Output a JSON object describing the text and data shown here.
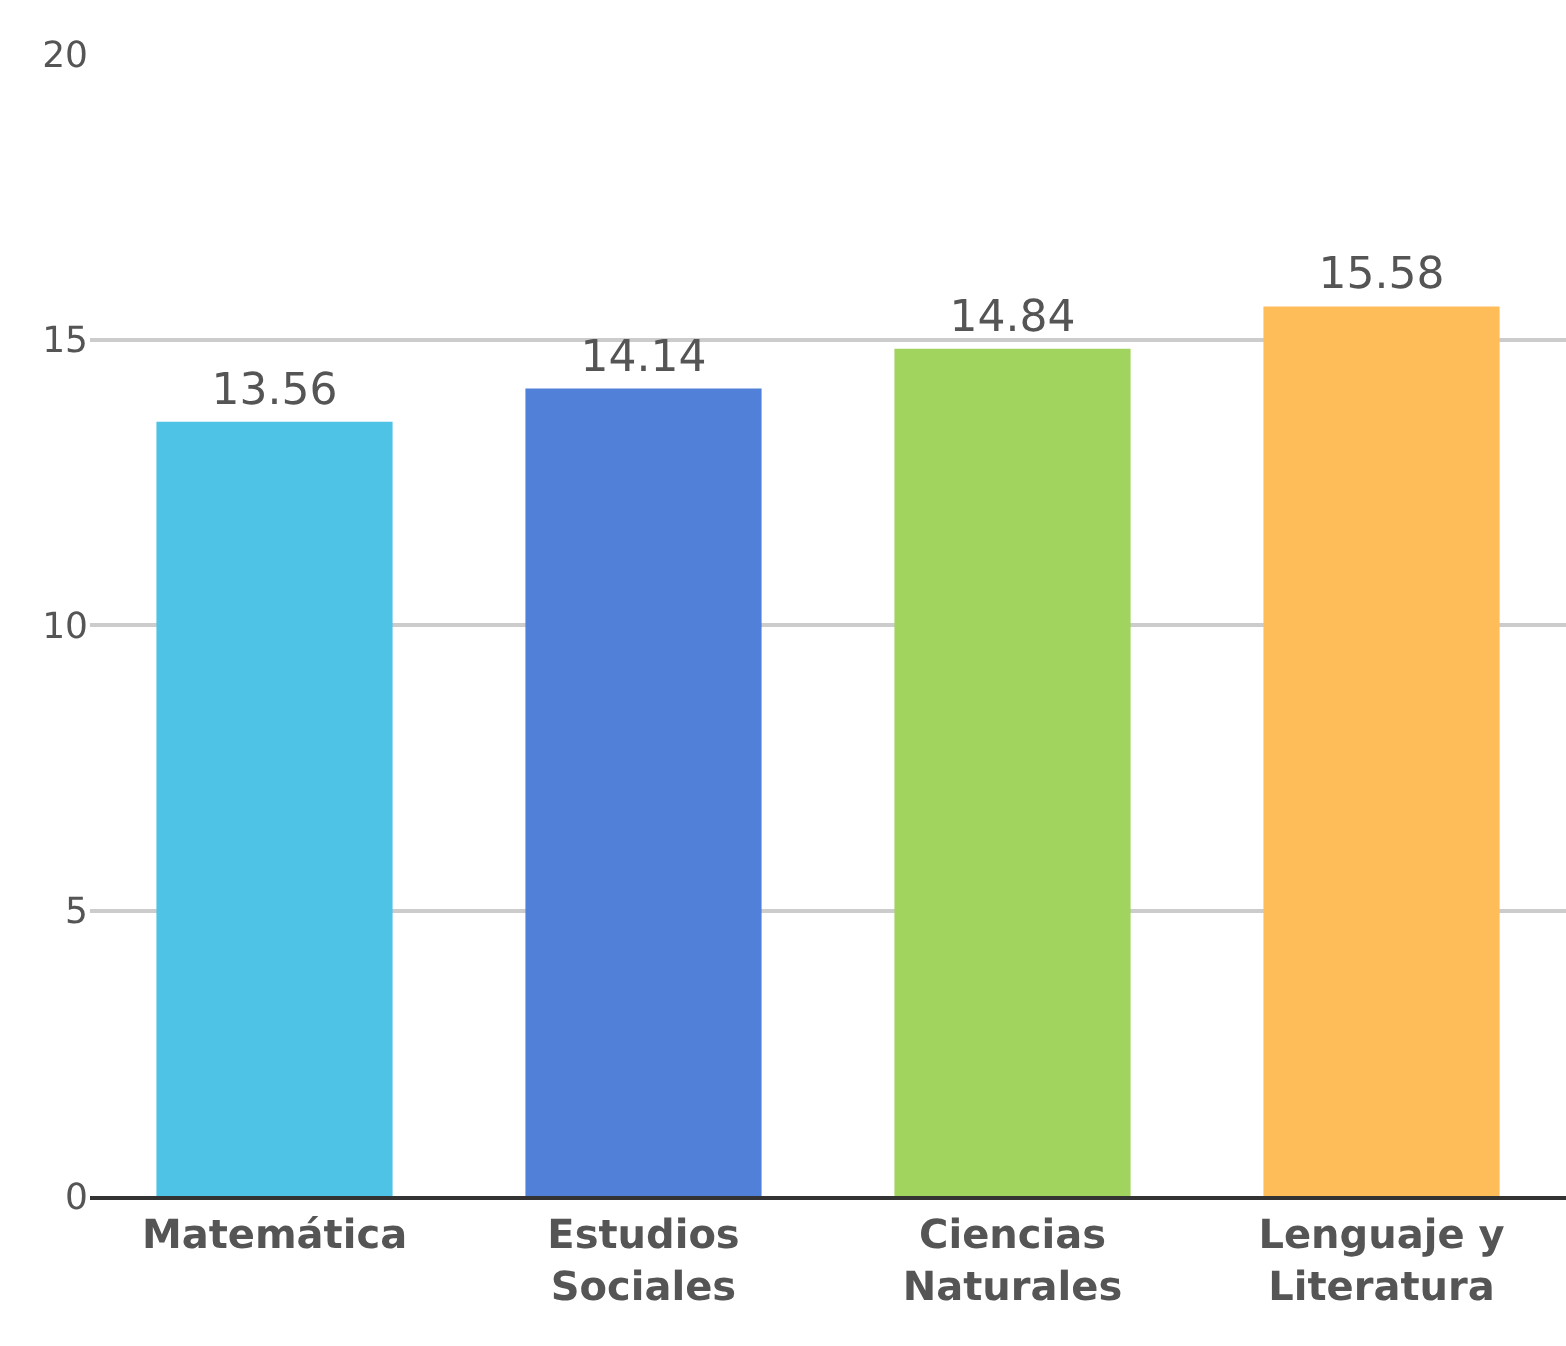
{
  "chart_data": {
    "type": "bar",
    "categories": [
      "Matemática",
      "Estudios Sociales",
      "Ciencias Naturales",
      "Lenguaje y Literatura"
    ],
    "values": [
      13.56,
      14.14,
      14.84,
      15.58
    ],
    "colors": [
      "#4fc3e6",
      "#5180d8",
      "#a0d45e",
      "#ffbd59"
    ],
    "ylim": [
      0,
      20
    ],
    "yticks": [
      0,
      5,
      10,
      15,
      20
    ],
    "grid": "y",
    "data_labels": true,
    "legend": false
  }
}
